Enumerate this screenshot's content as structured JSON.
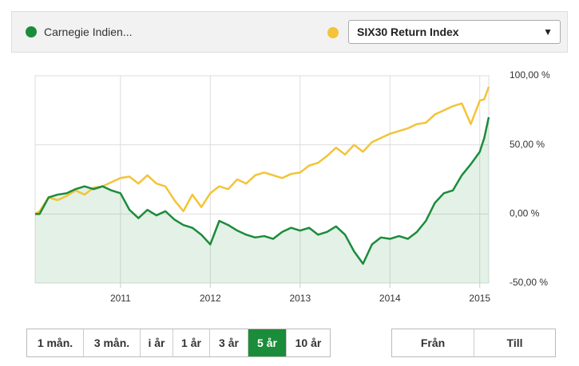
{
  "chart_data": {
    "type": "line",
    "x": [
      2010.05,
      2010.1,
      2010.2,
      2010.3,
      2010.4,
      2010.5,
      2010.6,
      2010.7,
      2010.8,
      2010.9,
      2011.0,
      2011.1,
      2011.2,
      2011.3,
      2011.4,
      2011.5,
      2011.6,
      2011.7,
      2011.8,
      2011.9,
      2012.0,
      2012.1,
      2012.2,
      2012.3,
      2012.4,
      2012.5,
      2012.6,
      2012.7,
      2012.8,
      2012.9,
      2013.0,
      2013.1,
      2013.2,
      2013.3,
      2013.4,
      2013.5,
      2013.6,
      2013.7,
      2013.8,
      2013.9,
      2014.0,
      2014.1,
      2014.2,
      2014.3,
      2014.4,
      2014.5,
      2014.6,
      2014.7,
      2014.8,
      2014.9,
      2015.0,
      2015.05,
      2015.1
    ],
    "series": [
      {
        "name": "Carnegie Indien...",
        "color": "#1b8c3a",
        "area": true,
        "values": [
          0,
          0,
          12,
          14,
          15,
          18,
          20,
          18,
          20,
          17,
          15,
          3,
          -3,
          3,
          -1,
          2,
          -4,
          -8,
          -10,
          -15,
          -22,
          -5,
          -8,
          -12,
          -15,
          -17,
          -16,
          -18,
          -13,
          -10,
          -12,
          -10,
          -15,
          -13,
          -9,
          -15,
          -27,
          -36,
          -22,
          -17,
          -18,
          -16,
          -18,
          -13,
          -5,
          8,
          15,
          17,
          28,
          36,
          45,
          55,
          70
        ]
      },
      {
        "name": "SIX30 Return Index",
        "color": "#f4c338",
        "area": false,
        "values": [
          0,
          2,
          12,
          10,
          13,
          17,
          14,
          19,
          20,
          23,
          26,
          27,
          22,
          28,
          22,
          20,
          10,
          2,
          14,
          5,
          15,
          20,
          18,
          25,
          22,
          28,
          30,
          28,
          26,
          29,
          30,
          35,
          37,
          42,
          48,
          43,
          50,
          45,
          52,
          55,
          58,
          60,
          62,
          65,
          66,
          72,
          75,
          78,
          80,
          65,
          82,
          83,
          92
        ]
      }
    ],
    "xlim": [
      2010.05,
      2015.1
    ],
    "xticks": [
      2011,
      2012,
      2013,
      2014,
      2015
    ],
    "ylim": [
      -50,
      100
    ],
    "yticks": [
      {
        "value": -50,
        "label": "-50,00 %"
      },
      {
        "value": 0,
        "label": "0,00 %"
      },
      {
        "value": 50,
        "label": "50,00 %"
      },
      {
        "value": 100,
        "label": "100,00 %"
      }
    ],
    "grid": true
  },
  "buttons": {
    "ranges": [
      "1 mån.",
      "3 mån.",
      "i år",
      "1 år",
      "3 år",
      "5 år",
      "10 år"
    ],
    "active": 5,
    "dates": [
      "Från",
      "Till"
    ]
  }
}
